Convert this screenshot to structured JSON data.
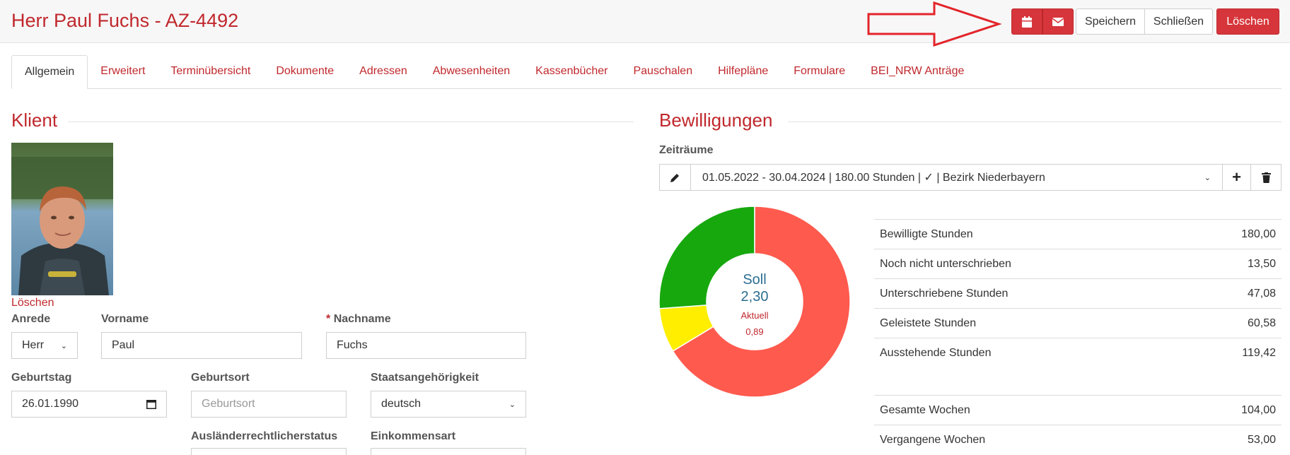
{
  "header": {
    "title": "Herr Paul Fuchs - AZ-4492",
    "buttons": {
      "save": "Speichern",
      "close": "Schließen",
      "delete": "Löschen"
    }
  },
  "tabs": [
    {
      "label": "Allgemein",
      "active": true
    },
    {
      "label": "Erweitert"
    },
    {
      "label": "Terminübersicht"
    },
    {
      "label": "Dokumente"
    },
    {
      "label": "Adressen"
    },
    {
      "label": "Abwesenheiten"
    },
    {
      "label": "Kassenbücher"
    },
    {
      "label": "Pauschalen"
    },
    {
      "label": "Hilfepläne"
    },
    {
      "label": "Formulare"
    },
    {
      "label": "BEI_NRW Anträge"
    }
  ],
  "client": {
    "section_title": "Klient",
    "photo_delete": "Löschen",
    "anrede": {
      "label": "Anrede",
      "value": "Herr"
    },
    "vorname": {
      "label": "Vorname",
      "value": "Paul"
    },
    "nachname": {
      "label": "Nachname",
      "required": "*",
      "value": "Fuchs"
    },
    "geburtstag": {
      "label": "Geburtstag",
      "value": "26.01.1990"
    },
    "geburtsort": {
      "label": "Geburtsort",
      "placeholder": "Geburtsort"
    },
    "staatsangehoerigkeit": {
      "label": "Staatsangehörigkeit",
      "value": "deutsch"
    },
    "auslaenderstatus": {
      "label": "Ausländerrechtlicherstatus"
    },
    "einkommensart": {
      "label": "Einkommensart"
    }
  },
  "approvals": {
    "section_title": "Bewilligungen",
    "periods_label": "Zeiträume",
    "selected_period": "01.05.2022 - 30.04.2024 | 180.00 Stunden | ✓ | Bezirk Niederbayern",
    "donut": {
      "soll_label": "Soll",
      "soll_value": "2,30",
      "aktuell_label": "Aktuell",
      "aktuell_value": "0,89",
      "segments": [
        {
          "value": 119.42,
          "color": "#ff5a4e"
        },
        {
          "value": 13.5,
          "color": "#ffee00"
        },
        {
          "value": 47.08,
          "color": "#17a80e"
        }
      ]
    },
    "stats": [
      {
        "label": "Bewilligte Stunden",
        "value": "180,00"
      },
      {
        "label": "Noch nicht unterschrieben",
        "value": "13,50"
      },
      {
        "label": "Unterschriebene Stunden",
        "value": "47,08"
      },
      {
        "label": "Geleistete Stunden",
        "value": "60,58"
      },
      {
        "label": "Ausstehende Stunden",
        "value": "119,42"
      }
    ],
    "weeks": [
      {
        "label": "Gesamte Wochen",
        "value": "104,00"
      },
      {
        "label": "Vergangene Wochen",
        "value": "53,00"
      }
    ]
  },
  "colors": {
    "brand": "#c0282d",
    "danger": "#d6363b"
  }
}
